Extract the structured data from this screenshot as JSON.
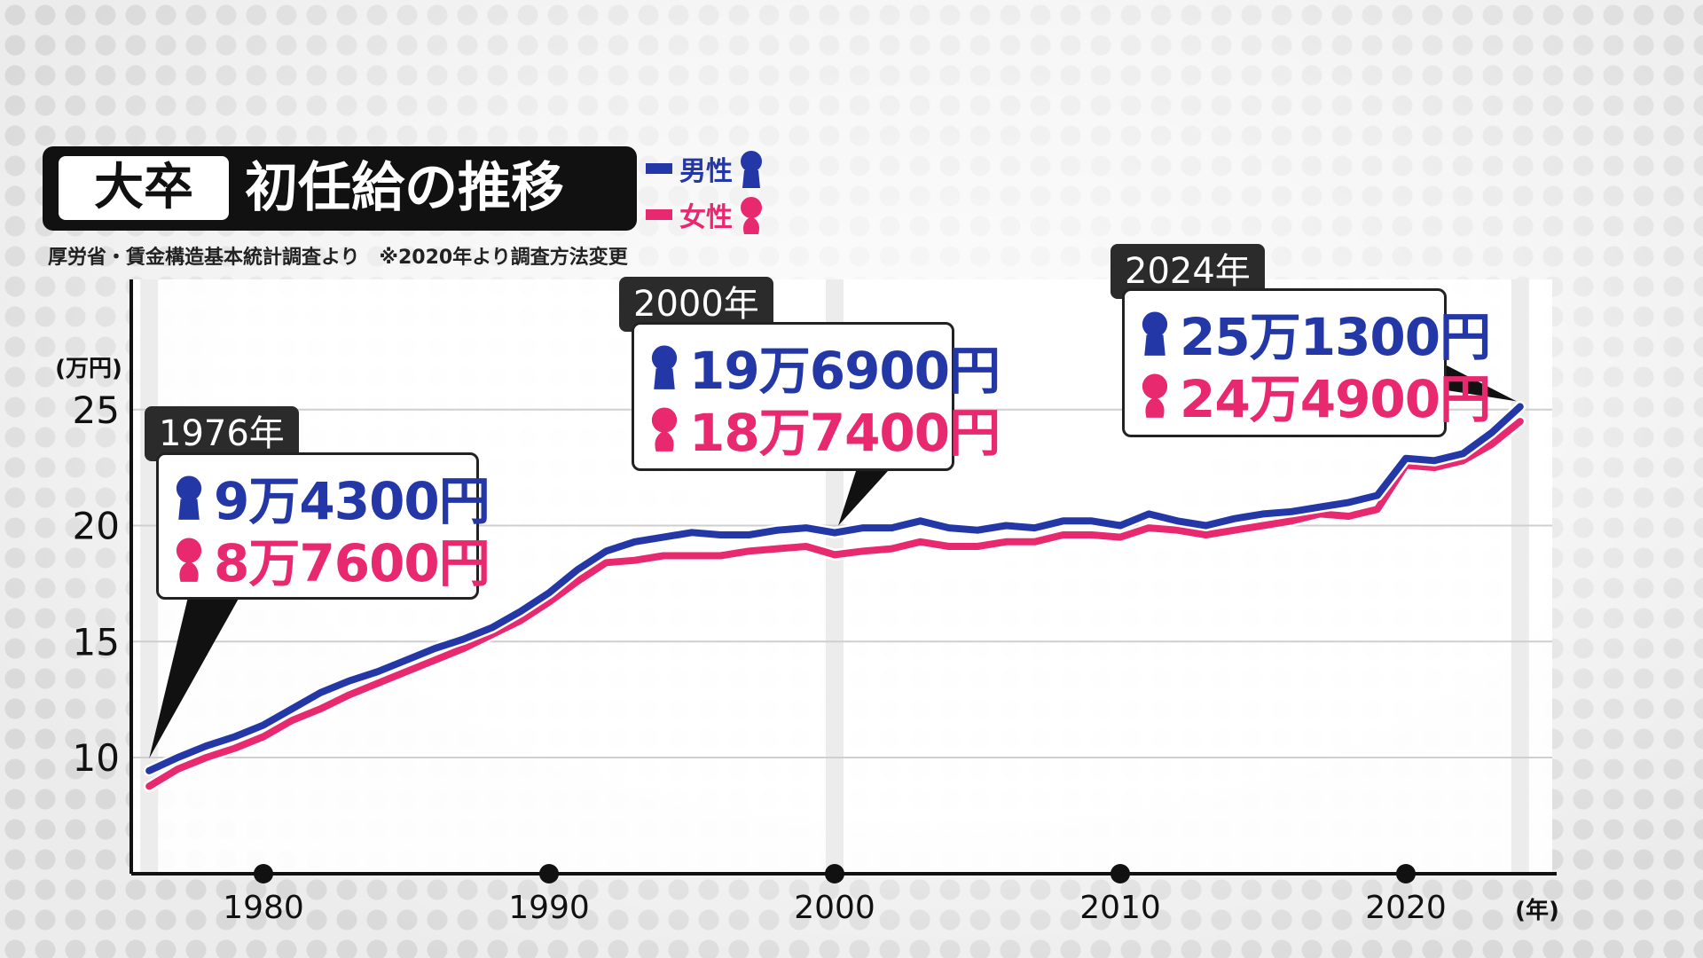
{
  "title": {
    "tag": "大卒",
    "main": "初任給の推移"
  },
  "legend": [
    {
      "label": "男性",
      "color": "#2437a6",
      "icon": "male-person-icon"
    },
    {
      "label": "女性",
      "color": "#e8286f",
      "icon": "female-person-icon"
    }
  ],
  "source": "厚労省・賃金構造基本統計調査より　※2020年より調査方法変更",
  "callouts": [
    {
      "year_label": "1976年",
      "male": "9万4300円",
      "female": "8万7600円"
    },
    {
      "year_label": "2000年",
      "male": "19万6900円",
      "female": "18万7400円"
    },
    {
      "year_label": "2024年",
      "male": "25万1300円",
      "female": "24万4900円"
    }
  ],
  "chart_data": {
    "type": "line",
    "ylabel": "(万円)",
    "xlabel": "(年)",
    "ylim": [
      5,
      30
    ],
    "xlim": [
      1976,
      2024
    ],
    "yticks": [
      10,
      15,
      20,
      25
    ],
    "xticks": [
      1980,
      1990,
      2000,
      2010,
      2020
    ],
    "grid": true,
    "x": [
      1976,
      1977,
      1978,
      1979,
      1980,
      1981,
      1982,
      1983,
      1984,
      1985,
      1986,
      1987,
      1988,
      1989,
      1990,
      1991,
      1992,
      1993,
      1994,
      1995,
      1996,
      1997,
      1998,
      1999,
      2000,
      2001,
      2002,
      2003,
      2004,
      2005,
      2006,
      2007,
      2008,
      2009,
      2010,
      2011,
      2012,
      2013,
      2014,
      2015,
      2016,
      2017,
      2018,
      2019,
      2020,
      2021,
      2022,
      2023,
      2024
    ],
    "series": [
      {
        "name": "男性",
        "color": "#2437a6",
        "values": [
          9.43,
          10.0,
          10.5,
          10.9,
          11.4,
          12.1,
          12.8,
          13.3,
          13.7,
          14.2,
          14.7,
          15.1,
          15.6,
          16.3,
          17.1,
          18.1,
          18.9,
          19.3,
          19.5,
          19.7,
          19.6,
          19.6,
          19.8,
          19.9,
          19.69,
          19.9,
          19.9,
          20.2,
          19.9,
          19.8,
          20.0,
          19.9,
          20.2,
          20.2,
          20.0,
          20.5,
          20.2,
          20.0,
          20.3,
          20.5,
          20.6,
          20.8,
          21.0,
          21.3,
          22.9,
          22.8,
          23.1,
          24.0,
          25.13
        ]
      },
      {
        "name": "女性",
        "color": "#e8286f",
        "values": [
          8.76,
          9.5,
          10.0,
          10.4,
          10.9,
          11.6,
          12.1,
          12.7,
          13.2,
          13.7,
          14.2,
          14.7,
          15.3,
          15.9,
          16.7,
          17.6,
          18.4,
          18.5,
          18.7,
          18.7,
          18.7,
          18.9,
          19.0,
          19.1,
          18.74,
          18.9,
          19.0,
          19.3,
          19.1,
          19.1,
          19.3,
          19.3,
          19.6,
          19.6,
          19.5,
          19.9,
          19.8,
          19.6,
          19.8,
          20.0,
          20.2,
          20.5,
          20.4,
          20.7,
          22.6,
          22.5,
          22.8,
          23.5,
          24.49
        ]
      }
    ]
  }
}
